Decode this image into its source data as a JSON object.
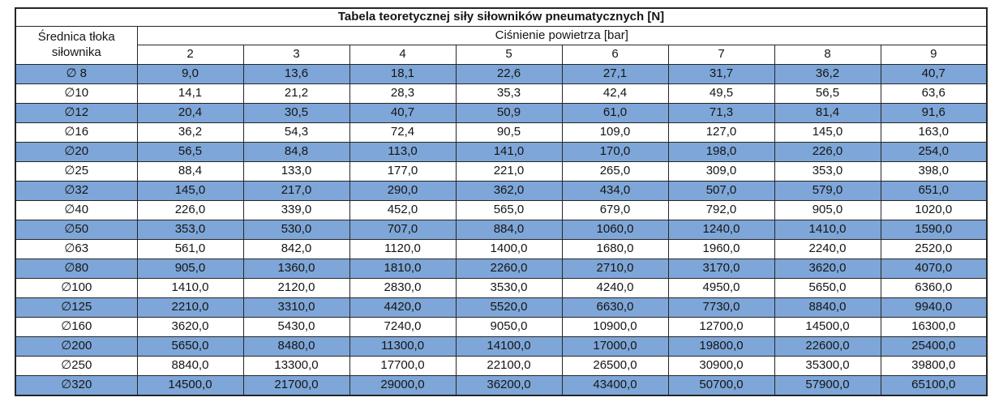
{
  "table": {
    "title": "Tabela teoretycznej siły siłowników pneumatycznych [N]",
    "row_header_label": "Średnica tłoka siłownika",
    "column_group_label": "Ciśnienie powietrza [bar]",
    "pressures": [
      "2",
      "3",
      "4",
      "5",
      "6",
      "7",
      "8",
      "9"
    ],
    "rows": [
      {
        "diameter": "∅ 8",
        "highlight": true,
        "values": [
          "9,0",
          "13,6",
          "18,1",
          "22,6",
          "27,1",
          "31,7",
          "36,2",
          "40,7"
        ]
      },
      {
        "diameter": "∅10",
        "highlight": false,
        "values": [
          "14,1",
          "21,2",
          "28,3",
          "35,3",
          "42,4",
          "49,5",
          "56,5",
          "63,6"
        ]
      },
      {
        "diameter": "∅12",
        "highlight": true,
        "values": [
          "20,4",
          "30,5",
          "40,7",
          "50,9",
          "61,0",
          "71,3",
          "81,4",
          "91,6"
        ]
      },
      {
        "diameter": "∅16",
        "highlight": false,
        "values": [
          "36,2",
          "54,3",
          "72,4",
          "90,5",
          "109,0",
          "127,0",
          "145,0",
          "163,0"
        ]
      },
      {
        "diameter": "∅20",
        "highlight": true,
        "values": [
          "56,5",
          "84,8",
          "113,0",
          "141,0",
          "170,0",
          "198,0",
          "226,0",
          "254,0"
        ]
      },
      {
        "diameter": "∅25",
        "highlight": false,
        "values": [
          "88,4",
          "133,0",
          "177,0",
          "221,0",
          "265,0",
          "309,0",
          "353,0",
          "398,0"
        ]
      },
      {
        "diameter": "∅32",
        "highlight": true,
        "values": [
          "145,0",
          "217,0",
          "290,0",
          "362,0",
          "434,0",
          "507,0",
          "579,0",
          "651,0"
        ]
      },
      {
        "diameter": "∅40",
        "highlight": false,
        "values": [
          "226,0",
          "339,0",
          "452,0",
          "565,0",
          "679,0",
          "792,0",
          "905,0",
          "1020,0"
        ]
      },
      {
        "diameter": "∅50",
        "highlight": true,
        "values": [
          "353,0",
          "530,0",
          "707,0",
          "884,0",
          "1060,0",
          "1240,0",
          "1410,0",
          "1590,0"
        ]
      },
      {
        "diameter": "∅63",
        "highlight": false,
        "values": [
          "561,0",
          "842,0",
          "1120,0",
          "1400,0",
          "1680,0",
          "1960,0",
          "2240,0",
          "2520,0"
        ]
      },
      {
        "diameter": "∅80",
        "highlight": true,
        "values": [
          "905,0",
          "1360,0",
          "1810,0",
          "2260,0",
          "2710,0",
          "3170,0",
          "3620,0",
          "4070,0"
        ]
      },
      {
        "diameter": "∅100",
        "highlight": false,
        "values": [
          "1410,0",
          "2120,0",
          "2830,0",
          "3530,0",
          "4240,0",
          "4950,0",
          "5650,0",
          "6360,0"
        ]
      },
      {
        "diameter": "∅125",
        "highlight": true,
        "values": [
          "2210,0",
          "3310,0",
          "4420,0",
          "5520,0",
          "6630,0",
          "7730,0",
          "8840,0",
          "9940,0"
        ]
      },
      {
        "diameter": "∅160",
        "highlight": false,
        "values": [
          "3620,0",
          "5430,0",
          "7240,0",
          "9050,0",
          "10900,0",
          "12700,0",
          "14500,0",
          "16300,0"
        ]
      },
      {
        "diameter": "∅200",
        "highlight": true,
        "values": [
          "5650,0",
          "8480,0",
          "11300,0",
          "14100,0",
          "17000,0",
          "19800,0",
          "22600,0",
          "25400,0"
        ]
      },
      {
        "diameter": "∅250",
        "highlight": false,
        "values": [
          "8840,0",
          "13300,0",
          "17700,0",
          "22100,0",
          "26500,0",
          "30900,0",
          "35300,0",
          "39800,0"
        ]
      },
      {
        "diameter": "∅320",
        "highlight": true,
        "values": [
          "14500,0",
          "21700,0",
          "29000,0",
          "36200,0",
          "43400,0",
          "50700,0",
          "57900,0",
          "65100,0"
        ]
      }
    ]
  },
  "colors": {
    "highlight_row": "#7ea6d8",
    "border": "#262626",
    "text": "#151515",
    "background": "#ffffff"
  }
}
